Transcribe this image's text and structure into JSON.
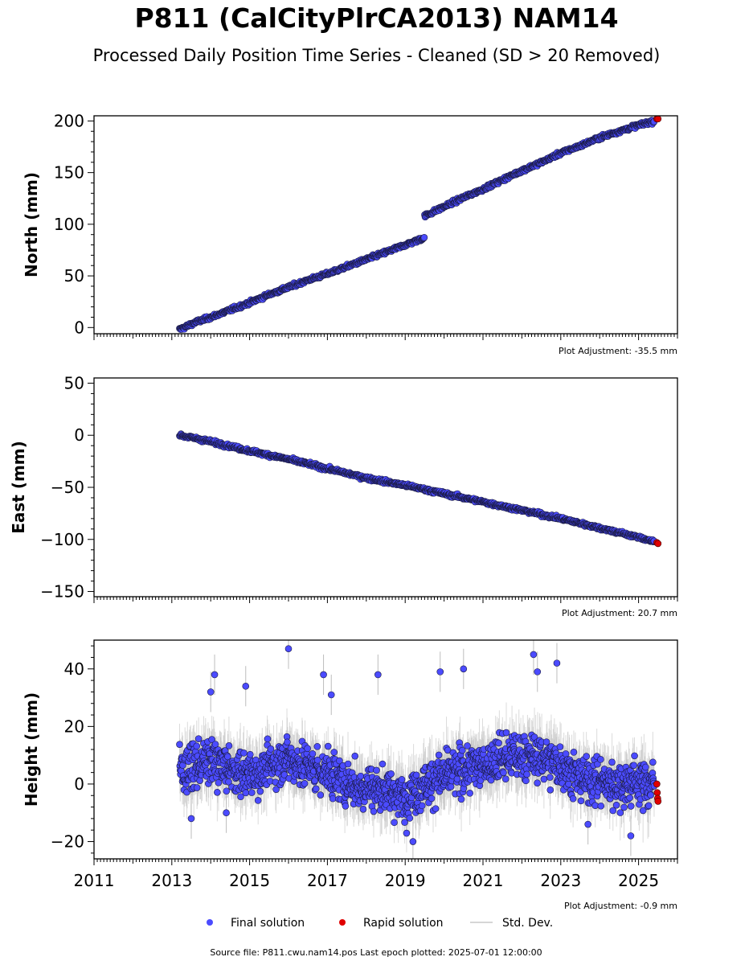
{
  "title": "P811 (CalCityPlrCA2013) NAM14",
  "subtitle": "Processed Daily Position Time Series - Cleaned (SD > 20 Removed)",
  "colors": {
    "final": "#4b4bff",
    "rapid": "#e00000",
    "stddev": "#bdbdbd",
    "edge": "#1a1a40"
  },
  "chart_data": [
    {
      "type": "scatter",
      "panel": "north",
      "ylabel": "North (mm)",
      "xlim": [
        2011,
        2026
      ],
      "ylim": [
        -6,
        205
      ],
      "yticks": [
        0,
        50,
        100,
        150,
        200
      ],
      "adjustment": "Plot Adjustment: -35.5 mm",
      "series": [
        {
          "name": "Final solution",
          "x": [
            2013.2,
            2013.6,
            2014.0,
            2014.5,
            2015.0,
            2015.5,
            2016.0,
            2016.5,
            2017.0,
            2017.5,
            2018.0,
            2018.5,
            2019.0,
            2019.49,
            2019.5,
            2020.0,
            2020.5,
            2021.0,
            2021.5,
            2022.0,
            2022.5,
            2023.0,
            2023.5,
            2024.0,
            2024.5,
            2025.0,
            2025.4
          ],
          "y": [
            -2,
            5,
            10,
            17,
            24,
            32,
            39,
            46,
            52,
            59,
            66,
            73,
            80,
            87,
            108,
            117,
            126,
            134,
            143,
            152,
            160,
            169,
            176,
            184,
            190,
            196,
            200
          ]
        },
        {
          "name": "Rapid solution",
          "x": [
            2025.47,
            2025.5
          ],
          "y": [
            202,
            202
          ]
        }
      ]
    },
    {
      "type": "scatter",
      "panel": "east",
      "ylabel": "East (mm)",
      "xlim": [
        2011,
        2026
      ],
      "ylim": [
        -155,
        55
      ],
      "yticks": [
        -150,
        -100,
        -50,
        0,
        50
      ],
      "adjustment": "Plot Adjustment: 20.7 mm",
      "series": [
        {
          "name": "Final solution",
          "x": [
            2013.2,
            2014.0,
            2015.0,
            2016.0,
            2017.0,
            2018.0,
            2019.0,
            2020.0,
            2021.0,
            2022.0,
            2023.0,
            2024.0,
            2025.0,
            2025.4
          ],
          "y": [
            0,
            -6,
            -15,
            -23,
            -32,
            -41,
            -48,
            -56,
            -64,
            -72,
            -80,
            -89,
            -98,
            -102
          ]
        },
        {
          "name": "Rapid solution",
          "x": [
            2025.47,
            2025.5
          ],
          "y": [
            -103,
            -104
          ]
        }
      ]
    },
    {
      "type": "scatter",
      "panel": "height",
      "ylabel": "Height (mm)",
      "xlim": [
        2011,
        2026
      ],
      "ylim": [
        -26,
        50
      ],
      "yticks": [
        -20,
        0,
        20,
        40
      ],
      "xticks": [
        2011,
        2013,
        2015,
        2017,
        2019,
        2021,
        2023,
        2025
      ],
      "adjustment": "Plot Adjustment: -0.9 mm",
      "series": [
        {
          "name": "Final solution",
          "x": [
            2013.2,
            2013.5,
            2014.0,
            2014.5,
            2015.0,
            2015.5,
            2016.0,
            2016.5,
            2017.0,
            2017.5,
            2018.0,
            2018.5,
            2019.0,
            2019.5,
            2020.0,
            2020.5,
            2021.0,
            2021.5,
            2022.0,
            2022.5,
            2023.0,
            2023.5,
            2024.0,
            2024.5,
            2025.0,
            2025.4
          ],
          "y": [
            5,
            6,
            8,
            5,
            3,
            6,
            9,
            6,
            4,
            0,
            -1,
            -2,
            -5,
            0,
            3,
            5,
            7,
            9,
            10,
            9,
            7,
            2,
            1,
            0,
            1,
            0
          ]
        },
        {
          "name": "Rapid solution",
          "x": [
            2025.47,
            2025.48,
            2025.49,
            2025.5
          ],
          "y": [
            0,
            -3,
            -5,
            -6
          ]
        }
      ],
      "outliers": [
        {
          "x": 2014.1,
          "y": 38
        },
        {
          "x": 2014.0,
          "y": 32
        },
        {
          "x": 2014.9,
          "y": 34
        },
        {
          "x": 2016.0,
          "y": 47
        },
        {
          "x": 2016.9,
          "y": 38
        },
        {
          "x": 2017.1,
          "y": 31
        },
        {
          "x": 2018.3,
          "y": 38
        },
        {
          "x": 2019.9,
          "y": 39
        },
        {
          "x": 2020.5,
          "y": 40
        },
        {
          "x": 2022.3,
          "y": 45
        },
        {
          "x": 2022.4,
          "y": 39
        },
        {
          "x": 2022.9,
          "y": 42
        },
        {
          "x": 2013.5,
          "y": -12
        },
        {
          "x": 2014.4,
          "y": -10
        },
        {
          "x": 2019.2,
          "y": -20
        },
        {
          "x": 2024.8,
          "y": -18
        },
        {
          "x": 2023.7,
          "y": -14
        }
      ]
    }
  ],
  "legend": {
    "final": "Final solution",
    "rapid": "Rapid solution",
    "stddev": "Std. Dev."
  },
  "footer": "Source file: P811.cwu.nam14.pos  Last epoch plotted: 2025-07-01 12:00:00"
}
